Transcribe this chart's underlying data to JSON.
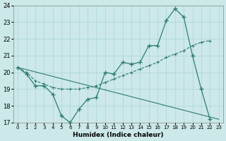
{
  "xlabel": "Humidex (Indice chaleur)",
  "bg_color": "#cce8e8",
  "line_color": "#2e7d6e",
  "grid_color": "#aad4d4",
  "xlim": [
    -0.5,
    23.5
  ],
  "ylim": [
    17,
    24
  ],
  "yticks": [
    17,
    18,
    19,
    20,
    21,
    22,
    23,
    24
  ],
  "xticks": [
    0,
    1,
    2,
    3,
    4,
    5,
    6,
    7,
    8,
    9,
    10,
    11,
    12,
    13,
    14,
    15,
    16,
    17,
    18,
    19,
    20,
    21,
    22,
    23
  ],
  "line1_x": [
    0,
    1,
    2,
    3,
    4,
    5,
    6,
    7,
    8,
    9,
    10,
    11,
    12,
    13,
    14,
    15,
    16,
    17,
    18,
    19,
    20,
    21,
    22
  ],
  "line1_y": [
    20.3,
    19.9,
    19.2,
    19.2,
    18.7,
    17.4,
    17.0,
    17.8,
    18.4,
    18.5,
    20.0,
    19.9,
    20.6,
    20.5,
    20.6,
    21.6,
    21.6,
    23.1,
    23.8,
    23.3,
    21.0,
    19.0,
    17.2
  ],
  "line2_x": [
    0,
    1,
    2,
    3,
    4,
    5,
    6,
    7,
    8,
    9,
    10,
    11,
    12,
    13,
    14,
    15,
    16,
    17,
    18,
    19,
    20,
    21,
    22,
    23
  ],
  "line2_y": [
    20.3,
    20.0,
    19.5,
    19.3,
    19.1,
    19.0,
    19.0,
    19.0,
    19.1,
    19.2,
    19.4,
    19.6,
    19.8,
    20.0,
    20.2,
    20.4,
    20.6,
    20.9,
    21.1,
    21.3,
    21.6,
    21.8,
    21.9,
    null
  ],
  "line3_x": [
    0,
    23
  ],
  "line3_y": [
    20.3,
    17.2
  ]
}
